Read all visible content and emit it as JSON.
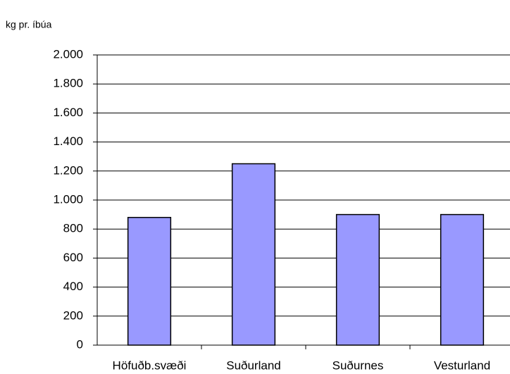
{
  "chart_data": {
    "type": "bar",
    "y_label": "kg pr. íbúa",
    "categories": [
      "Höfuðb.svæði",
      "Suðurland",
      "Suðurnes",
      "Vesturland"
    ],
    "values": [
      880,
      1250,
      900,
      900
    ],
    "color": "#9999ff",
    "ylim": [
      0,
      2000
    ],
    "yticks": [
      0,
      200,
      400,
      600,
      800,
      {
        "value": 1000,
        "label": "1.000"
      },
      {
        "value": 1200,
        "label": "1.200"
      },
      {
        "value": 1400,
        "label": "1.400"
      },
      {
        "value": 1600,
        "label": "1.600"
      },
      {
        "value": 1800,
        "label": "1.800"
      },
      {
        "value": 2000,
        "label": "2.000"
      }
    ],
    "grid": true
  }
}
